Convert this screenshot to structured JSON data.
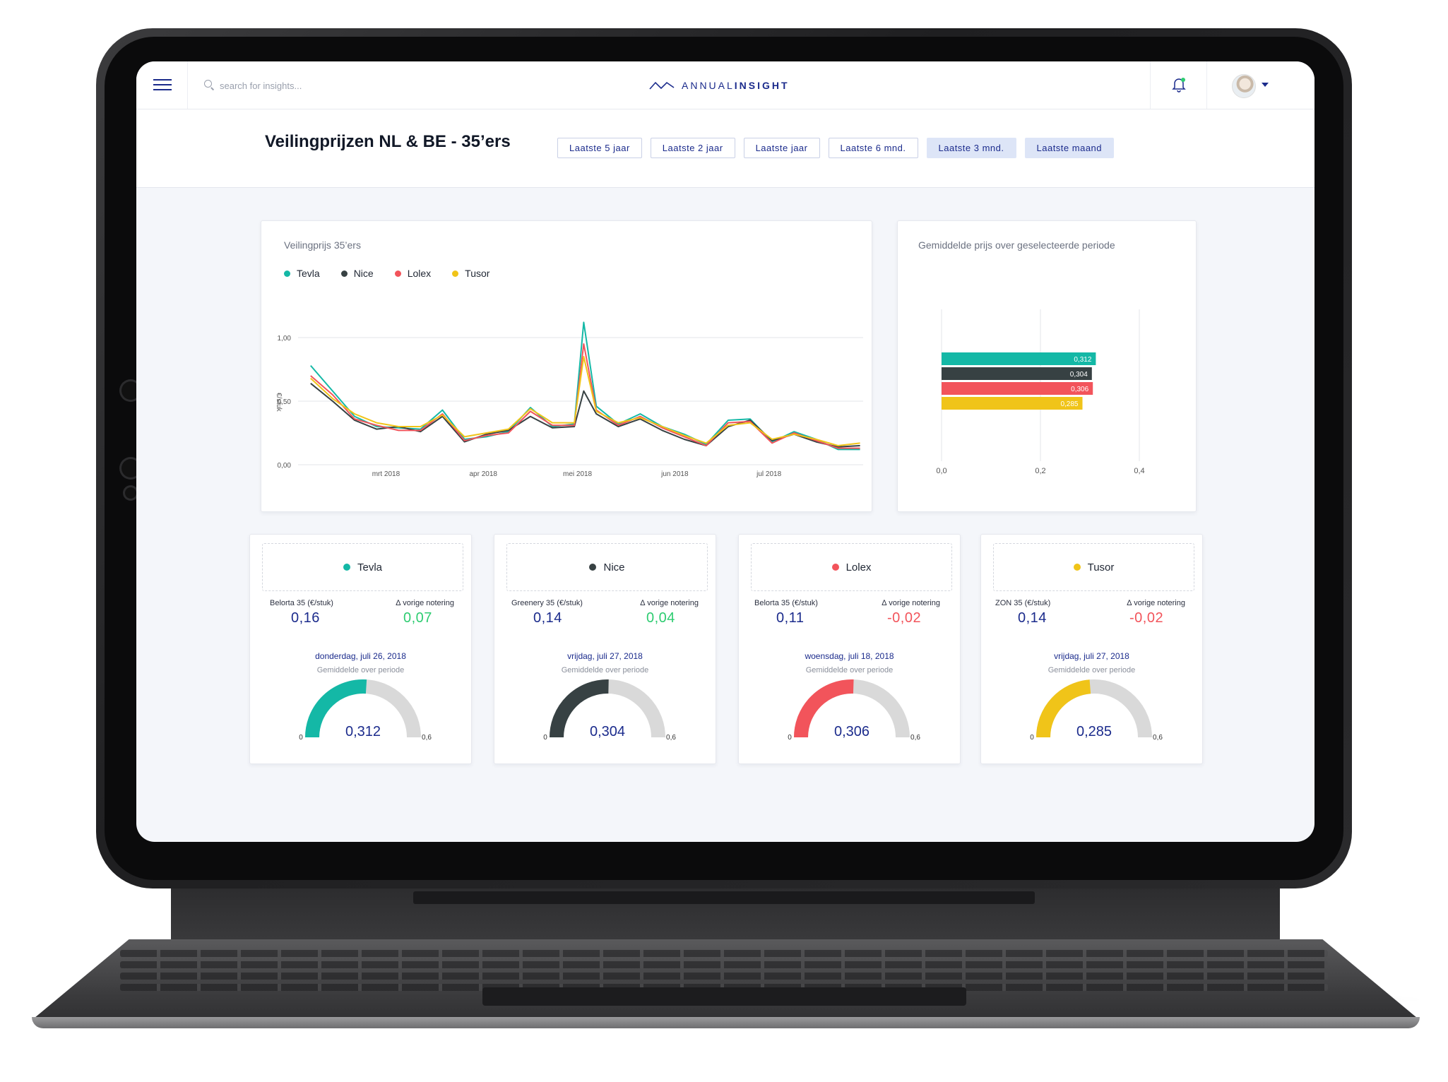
{
  "app": {
    "search_placeholder": "search for insights...",
    "logo_light": "ANNUAL",
    "logo_bold": "INSIGHT"
  },
  "page": {
    "title": "Veilingprijzen NL & BE - 35’ers",
    "periods": [
      "Laatste 5 jaar",
      "Laatste 2 jaar",
      "Laatste jaar",
      "Laatste 6 mnd.",
      "Laatste 3 mnd.",
      "Laatste maand"
    ],
    "active_period": "Laatste 3 mnd."
  },
  "colors": {
    "accent": "#1b2b8c",
    "Tevla": "#14b8a6",
    "Nice": "#374143",
    "Lolex": "#f2545b",
    "Tusor": "#f0c419",
    "positive": "#2ecc71",
    "negative": "#f2545b",
    "gauge_track": "#d9d9d9"
  },
  "icons": [
    "menu-icon",
    "search-icon",
    "logo-wave-icon",
    "bell-icon",
    "avatar",
    "chevron-down-icon"
  ],
  "chart_data": [
    {
      "type": "line",
      "title": "Veilingprijs 35’ers",
      "ylabel": "€/stuk",
      "ylim": [
        0,
        1.0
      ],
      "yticks": [
        "0,00",
        "0,50",
        "1,00"
      ],
      "xticks": [
        "mrt 2018",
        "apr 2018",
        "mei 2018",
        "jun 2018",
        "jul 2018"
      ],
      "x_range": [
        "2018-02-01",
        "2018-07-31"
      ],
      "legend_position": "top-left",
      "grid": true,
      "series": [
        {
          "name": "Tevla",
          "x": [
            "2018-02-05",
            "2018-02-12",
            "2018-02-19",
            "2018-02-26",
            "2018-03-05",
            "2018-03-12",
            "2018-03-19",
            "2018-03-26",
            "2018-04-02",
            "2018-04-09",
            "2018-04-16",
            "2018-04-23",
            "2018-04-30",
            "2018-05-03",
            "2018-05-07",
            "2018-05-14",
            "2018-05-21",
            "2018-05-28",
            "2018-06-04",
            "2018-06-11",
            "2018-06-18",
            "2018-06-25",
            "2018-07-02",
            "2018-07-09",
            "2018-07-16",
            "2018-07-23",
            "2018-07-30"
          ],
          "y": [
            0.78,
            0.58,
            0.38,
            0.3,
            0.29,
            0.28,
            0.43,
            0.2,
            0.22,
            0.26,
            0.45,
            0.3,
            0.32,
            1.12,
            0.46,
            0.32,
            0.4,
            0.3,
            0.24,
            0.16,
            0.35,
            0.36,
            0.18,
            0.26,
            0.2,
            0.12,
            0.12
          ]
        },
        {
          "name": "Nice",
          "x": [
            "2018-02-05",
            "2018-02-12",
            "2018-02-19",
            "2018-02-26",
            "2018-03-05",
            "2018-03-12",
            "2018-03-19",
            "2018-03-26",
            "2018-04-02",
            "2018-04-09",
            "2018-04-16",
            "2018-04-23",
            "2018-04-30",
            "2018-05-03",
            "2018-05-07",
            "2018-05-14",
            "2018-05-21",
            "2018-05-28",
            "2018-06-04",
            "2018-06-11",
            "2018-06-18",
            "2018-06-25",
            "2018-07-02",
            "2018-07-09",
            "2018-07-16",
            "2018-07-23",
            "2018-07-30"
          ],
          "y": [
            0.64,
            0.5,
            0.35,
            0.28,
            0.3,
            0.26,
            0.38,
            0.18,
            0.24,
            0.27,
            0.38,
            0.29,
            0.3,
            0.58,
            0.4,
            0.3,
            0.36,
            0.27,
            0.2,
            0.15,
            0.3,
            0.35,
            0.19,
            0.24,
            0.18,
            0.14,
            0.15
          ]
        },
        {
          "name": "Lolex",
          "x": [
            "2018-02-05",
            "2018-02-12",
            "2018-02-19",
            "2018-02-26",
            "2018-03-05",
            "2018-03-12",
            "2018-03-19",
            "2018-03-26",
            "2018-04-02",
            "2018-04-09",
            "2018-04-16",
            "2018-04-23",
            "2018-04-30",
            "2018-05-03",
            "2018-05-07",
            "2018-05-14",
            "2018-05-21",
            "2018-05-28",
            "2018-06-04",
            "2018-06-11",
            "2018-06-18",
            "2018-06-25",
            "2018-07-02",
            "2018-07-09",
            "2018-07-16",
            "2018-07-23",
            "2018-07-30"
          ],
          "y": [
            0.7,
            0.55,
            0.36,
            0.31,
            0.27,
            0.27,
            0.4,
            0.19,
            0.23,
            0.25,
            0.42,
            0.31,
            0.31,
            0.95,
            0.43,
            0.31,
            0.38,
            0.29,
            0.22,
            0.15,
            0.33,
            0.34,
            0.17,
            0.25,
            0.19,
            0.13,
            0.13
          ]
        },
        {
          "name": "Tusor",
          "x": [
            "2018-02-05",
            "2018-02-12",
            "2018-02-19",
            "2018-02-26",
            "2018-03-05",
            "2018-03-12",
            "2018-03-19",
            "2018-03-26",
            "2018-04-02",
            "2018-04-09",
            "2018-04-16",
            "2018-04-23",
            "2018-04-30",
            "2018-05-03",
            "2018-05-07",
            "2018-05-14",
            "2018-05-21",
            "2018-05-28",
            "2018-06-04",
            "2018-06-11",
            "2018-06-18",
            "2018-06-25",
            "2018-07-02",
            "2018-07-09",
            "2018-07-16",
            "2018-07-23",
            "2018-07-30"
          ],
          "y": [
            0.68,
            0.52,
            0.4,
            0.33,
            0.3,
            0.3,
            0.39,
            0.22,
            0.25,
            0.28,
            0.44,
            0.33,
            0.33,
            0.85,
            0.42,
            0.33,
            0.37,
            0.3,
            0.23,
            0.17,
            0.31,
            0.33,
            0.2,
            0.24,
            0.2,
            0.15,
            0.17
          ]
        }
      ]
    },
    {
      "type": "bar",
      "orientation": "horizontal",
      "title": "Gemiddelde prijs over geselecteerde periode",
      "categories": [
        "Tevla",
        "Nice",
        "Lolex",
        "Tusor"
      ],
      "values": [
        0.312,
        0.304,
        0.306,
        0.285
      ],
      "value_labels": [
        "0,312",
        "0,304",
        "0,306",
        "0,285"
      ],
      "xlim": [
        0,
        0.4
      ],
      "xticks": [
        "0,0",
        "0,2",
        "0,4"
      ],
      "grid": true
    }
  ],
  "kpis": [
    {
      "name": "Tevla",
      "color": "#14b8a6",
      "product_label": "Belorta 35 (€/stuk)",
      "delta_label": "∆ vorige notering",
      "value": "0,16",
      "delta": "0,07",
      "delta_sign": "positive",
      "date": "donderdag, juli 26, 2018",
      "avg_label": "Gemiddelde over periode",
      "avg": "0,312",
      "avg_value": 0.312,
      "min": "0",
      "max": "0,6",
      "max_value": 0.6
    },
    {
      "name": "Nice",
      "color": "#374143",
      "product_label": "Greenery 35 (€/stuk)",
      "delta_label": "∆ vorige notering",
      "value": "0,14",
      "delta": "0,04",
      "delta_sign": "positive",
      "date": "vrijdag, juli 27, 2018",
      "avg_label": "Gemiddelde over periode",
      "avg": "0,304",
      "avg_value": 0.304,
      "min": "0",
      "max": "0,6",
      "max_value": 0.6
    },
    {
      "name": "Lolex",
      "color": "#f2545b",
      "product_label": "Belorta 35 (€/stuk)",
      "delta_label": "∆ vorige notering",
      "value": "0,11",
      "delta": "-0,02",
      "delta_sign": "negative",
      "date": "woensdag, juli 18, 2018",
      "avg_label": "Gemiddelde over periode",
      "avg": "0,306",
      "avg_value": 0.306,
      "min": "0",
      "max": "0,6",
      "max_value": 0.6
    },
    {
      "name": "Tusor",
      "color": "#f0c419",
      "product_label": "ZON 35 (€/stuk)",
      "delta_label": "∆ vorige notering",
      "value": "0,14",
      "delta": "-0,02",
      "delta_sign": "negative",
      "date": "vrijdag, juli 27, 2018",
      "avg_label": "Gemiddelde over periode",
      "avg": "0,285",
      "avg_value": 0.285,
      "min": "0",
      "max": "0,6",
      "max_value": 0.6
    }
  ]
}
